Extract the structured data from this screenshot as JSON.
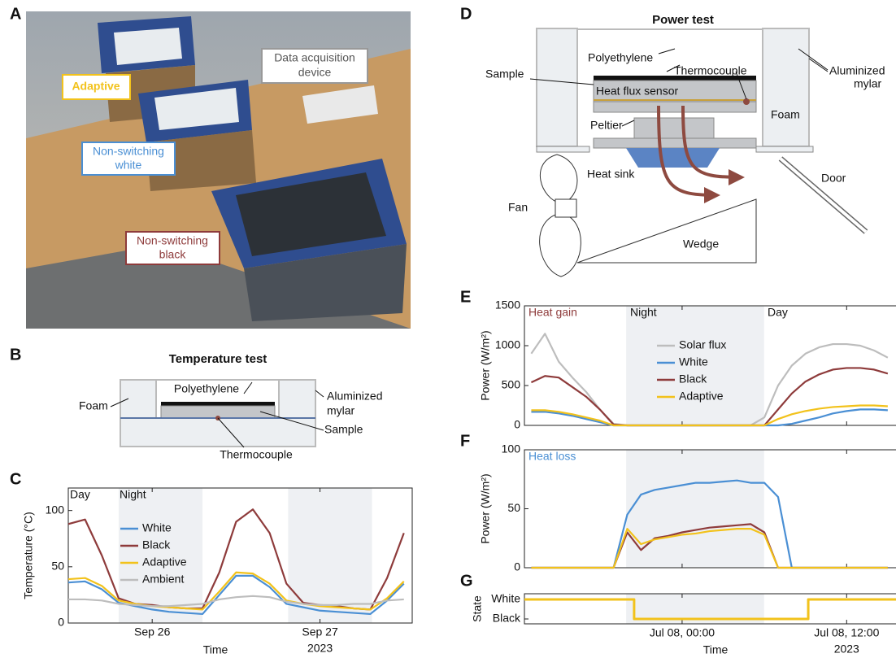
{
  "panel_labels": [
    "A",
    "B",
    "C",
    "D",
    "E",
    "F",
    "G"
  ],
  "photo": {
    "labels": [
      [
        "Adaptive"
      ],
      [
        "Data acquisition",
        "device"
      ],
      [
        "Non-switching",
        "white"
      ],
      [
        "Non-switching",
        "black"
      ]
    ]
  },
  "temperature_test": {
    "title": "Temperature test",
    "polyethylene": "Polyethylene",
    "foam": "Foam",
    "mylar": [
      "Aluminized",
      "mylar"
    ],
    "sample": "Sample",
    "thermocouple": "Thermocouple"
  },
  "power_test": {
    "title": "Power test",
    "polyethylene": "Polyethylene",
    "thermocouple": "Thermocouple",
    "mylar": [
      "Aluminized",
      "mylar"
    ],
    "sample": "Sample",
    "heat_flux_sensor": "Heat flux sensor",
    "foam": "Foam",
    "peltier": "Peltier",
    "heat_sink": "Heat sink",
    "door": "Door",
    "fan": "Fan",
    "wedge": "Wedge"
  },
  "chart_data": [
    {
      "type": "line",
      "panel": "C",
      "ylabel": "Temperature (°C)",
      "xlabel": "Time",
      "x_sublabel": "2023",
      "xlim": [
        25.5,
        27.54
      ],
      "ylim": [
        0,
        120
      ],
      "yticks": [
        0,
        50,
        100
      ],
      "xticks": [
        {
          "value": 26,
          "label": "Sep 26"
        },
        {
          "value": 27,
          "label": "Sep 27"
        }
      ],
      "shaded": [
        [
          25.8,
          26.3
        ],
        [
          26.81,
          27.31
        ]
      ],
      "annotations": [
        {
          "text": "Day",
          "color": "#111111"
        },
        {
          "text": "Night",
          "color": "#111111"
        }
      ],
      "legend": "center left",
      "x": [
        25.5,
        25.6,
        25.7,
        25.8,
        25.9,
        26.0,
        26.1,
        26.2,
        26.3,
        26.4,
        26.5,
        26.6,
        26.7,
        26.8,
        26.9,
        27.0,
        27.1,
        27.2,
        27.3,
        27.4,
        27.5
      ],
      "series": [
        {
          "name": "White",
          "color": "#4a8fd4",
          "values": [
            36,
            37,
            30,
            18,
            15,
            12,
            10,
            9,
            8,
            25,
            42,
            42,
            32,
            17,
            14,
            11,
            10,
            9,
            8,
            20,
            35
          ]
        },
        {
          "name": "Black",
          "color": "#8e3b3b",
          "values": [
            88,
            92,
            60,
            22,
            17,
            16,
            14,
            13,
            13,
            45,
            90,
            101,
            80,
            35,
            18,
            16,
            15,
            13,
            12,
            40,
            80
          ]
        },
        {
          "name": "Adaptive",
          "color": "#f2c21b",
          "values": [
            39,
            40,
            33,
            20,
            17,
            15,
            14,
            13,
            12,
            28,
            45,
            44,
            35,
            20,
            17,
            15,
            14,
            13,
            12,
            22,
            37
          ]
        },
        {
          "name": "Ambient",
          "color": "#bdbdbd",
          "values": [
            21,
            21,
            20,
            17,
            16,
            15,
            15,
            16,
            17,
            21,
            23,
            24,
            23,
            19,
            17,
            16,
            16,
            17,
            17,
            20,
            21
          ]
        }
      ]
    },
    {
      "type": "line",
      "panel": "E",
      "ylabel": "Power (W/m²)",
      "xlim": [
        -11.5,
        15.6
      ],
      "ylim": [
        0,
        1500
      ],
      "yticks": [
        0,
        500,
        1000,
        1500
      ],
      "xticks": [
        {
          "value": 0,
          "label": ""
        },
        {
          "value": 12,
          "label": ""
        }
      ],
      "shaded": [
        [
          -4.08,
          5.98
        ]
      ],
      "annotations": [
        {
          "text": "Heat gain",
          "color": "#8e3b3b"
        },
        {
          "text": "Night",
          "color": "#111111"
        },
        {
          "text": "Day",
          "color": "#111111"
        }
      ],
      "legend": "upper center",
      "x": [
        -11,
        -10,
        -9,
        -8,
        -7,
        -6,
        -5,
        -4,
        -3,
        -2,
        -1,
        0,
        1,
        2,
        3,
        4,
        5,
        6,
        7,
        8,
        9,
        10,
        11,
        12,
        13,
        14,
        15
      ],
      "series": [
        {
          "name": "Solar flux",
          "color": "#bdbdbd",
          "values": [
            900,
            1150,
            800,
            600,
            420,
            200,
            20,
            0,
            0,
            0,
            0,
            0,
            0,
            0,
            0,
            0,
            0,
            100,
            500,
            750,
            900,
            980,
            1020,
            1020,
            1000,
            940,
            850
          ]
        },
        {
          "name": "White",
          "color": "#4a8fd4",
          "values": [
            170,
            170,
            150,
            120,
            80,
            40,
            0,
            0,
            0,
            0,
            0,
            0,
            0,
            0,
            0,
            0,
            0,
            0,
            0,
            20,
            60,
            100,
            150,
            180,
            200,
            200,
            190
          ]
        },
        {
          "name": "Black",
          "color": "#8e3b3b",
          "values": [
            540,
            620,
            600,
            480,
            360,
            200,
            10,
            0,
            0,
            0,
            0,
            0,
            0,
            0,
            0,
            0,
            0,
            0,
            200,
            400,
            550,
            640,
            700,
            720,
            720,
            700,
            650
          ]
        },
        {
          "name": "Adaptive",
          "color": "#f2c21b",
          "values": [
            190,
            190,
            170,
            140,
            100,
            60,
            0,
            0,
            0,
            0,
            0,
            0,
            0,
            0,
            0,
            0,
            0,
            0,
            80,
            140,
            180,
            210,
            230,
            240,
            250,
            250,
            240
          ]
        }
      ]
    },
    {
      "type": "line",
      "panel": "F",
      "ylabel": "Power (W/m²)",
      "xlim": [
        -11.5,
        15.6
      ],
      "ylim": [
        0,
        100
      ],
      "yticks": [
        0,
        50,
        100
      ],
      "xticks": [
        {
          "value": 0,
          "label": ""
        },
        {
          "value": 12,
          "label": ""
        }
      ],
      "shaded": [
        [
          -4.08,
          5.98
        ]
      ],
      "annotations": [
        {
          "text": "Heat loss",
          "color": "#4a8fd4"
        }
      ],
      "x": [
        -11,
        -10,
        -9,
        -8,
        -7,
        -6,
        -5,
        -4,
        -3,
        -2,
        -1,
        0,
        1,
        2,
        3,
        4,
        5,
        6,
        7,
        8,
        9,
        10,
        11,
        12,
        13,
        14,
        15
      ],
      "series": [
        {
          "color": "#4a8fd4",
          "values": [
            0,
            0,
            0,
            0,
            0,
            0,
            0,
            45,
            62,
            66,
            68,
            70,
            72,
            72,
            73,
            74,
            72,
            72,
            60,
            0,
            0,
            0,
            0,
            0,
            0,
            0,
            0
          ]
        },
        {
          "color": "#8e3b3b",
          "values": [
            0,
            0,
            0,
            0,
            0,
            0,
            0,
            30,
            15,
            25,
            27,
            30,
            32,
            34,
            35,
            36,
            37,
            30,
            0,
            0,
            0,
            0,
            0,
            0,
            0,
            0,
            0
          ]
        },
        {
          "color": "#f2c21b",
          "values": [
            0,
            0,
            0,
            0,
            0,
            0,
            0,
            33,
            20,
            24,
            26,
            28,
            29,
            31,
            32,
            33,
            33,
            28,
            0,
            0,
            0,
            0,
            0,
            0,
            0,
            0,
            0
          ]
        }
      ]
    },
    {
      "type": "step",
      "panel": "G",
      "ylabel": "State",
      "xlabel": "Time",
      "x_sublabel": "2023",
      "xlim": [
        -11.5,
        15.6
      ],
      "ylim": [
        -0.25,
        1.29
      ],
      "yticks": [
        {
          "value": 1,
          "label": "White"
        },
        {
          "value": 0,
          "label": "Black"
        }
      ],
      "xticks": [
        {
          "value": 0,
          "label": "Jul 08, 00:00"
        },
        {
          "value": 12,
          "label": "Jul 08, 12:00"
        }
      ],
      "shaded": [
        [
          -4.08,
          5.98
        ]
      ],
      "x": [
        -11.5,
        -3.5,
        9.2,
        15.6
      ],
      "series": [
        {
          "color": "#f2c21b",
          "values": [
            1,
            0,
            1,
            1
          ]
        }
      ]
    }
  ]
}
